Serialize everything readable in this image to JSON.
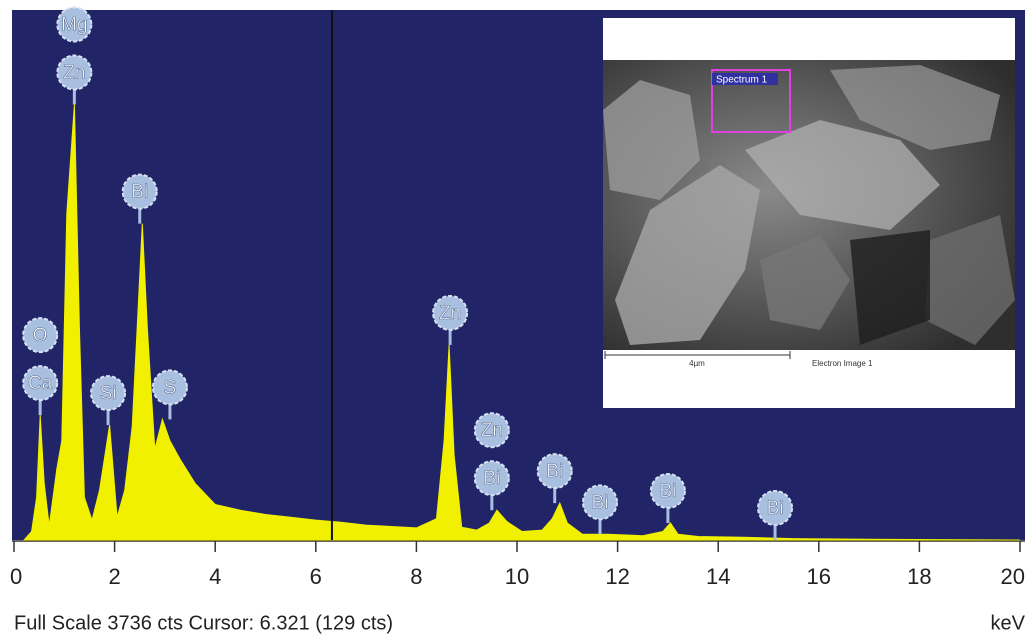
{
  "chart_data": {
    "type": "area",
    "color": "#f0f000",
    "x": [
      0.2,
      0.35,
      0.45,
      0.52,
      0.6,
      0.7,
      0.85,
      0.95,
      1.05,
      1.2,
      1.3,
      1.4,
      1.55,
      1.7,
      1.9,
      2.05,
      2.2,
      2.35,
      2.45,
      2.55,
      2.65,
      2.8,
      2.95,
      3.1,
      3.3,
      3.6,
      4,
      4.5,
      5,
      5.5,
      6,
      6.5,
      7,
      7.5,
      8,
      8.4,
      8.55,
      8.65,
      8.75,
      8.9,
      9.2,
      9.45,
      9.6,
      9.8,
      10.1,
      10.5,
      10.7,
      10.85,
      11.0,
      11.3,
      11.8,
      12.5,
      12.9,
      13.05,
      13.2,
      13.6,
      14.5,
      15.5,
      17,
      20
    ],
    "values": [
      0,
      60,
      300,
      880,
      400,
      100,
      500,
      700,
      2300,
      3070,
      1500,
      300,
      140,
      350,
      810,
      160,
      350,
      800,
      1500,
      2230,
      1500,
      640,
      850,
      700,
      570,
      400,
      250,
      210,
      180,
      160,
      140,
      125,
      105,
      95,
      85,
      150,
      700,
      1375,
      600,
      90,
      70,
      120,
      210,
      130,
      60,
      70,
      150,
      260,
      120,
      40,
      40,
      30,
      60,
      120,
      40,
      25,
      20,
      10,
      5,
      0
    ],
    "xlim": [
      0,
      20
    ],
    "ylim": [
      0,
      3736
    ],
    "xticks": [
      0,
      2,
      4,
      6,
      8,
      10,
      12,
      14,
      16,
      18,
      20
    ],
    "x_label": "keV",
    "cursor": 6.321,
    "footer": "Full Scale 3736 cts Cursor: 6.321  (129 cts)",
    "annotations": [
      {
        "text": "Ca",
        "x": 0.52
      },
      {
        "text": "O",
        "x": 0.52
      },
      {
        "text": "Zn",
        "x": 1.2
      },
      {
        "text": "Mg",
        "x": 1.2
      },
      {
        "text": "Si",
        "x": 1.87
      },
      {
        "text": "Bi",
        "x": 2.5
      },
      {
        "text": "S",
        "x": 3.1
      },
      {
        "text": "Zn",
        "x": 8.67
      },
      {
        "text": "Bi",
        "x": 9.5
      },
      {
        "text": "Zn",
        "x": 9.5
      },
      {
        "text": "Bi",
        "x": 10.75
      },
      {
        "text": "Bi",
        "x": 11.65
      },
      {
        "text": "Bi",
        "x": 13.0
      },
      {
        "text": "Bi",
        "x": 15.13
      }
    ],
    "inset": {
      "spectrum_label": "Spectrum 1",
      "scale_label": "4µm",
      "image_label": "Electron Image 1"
    }
  }
}
